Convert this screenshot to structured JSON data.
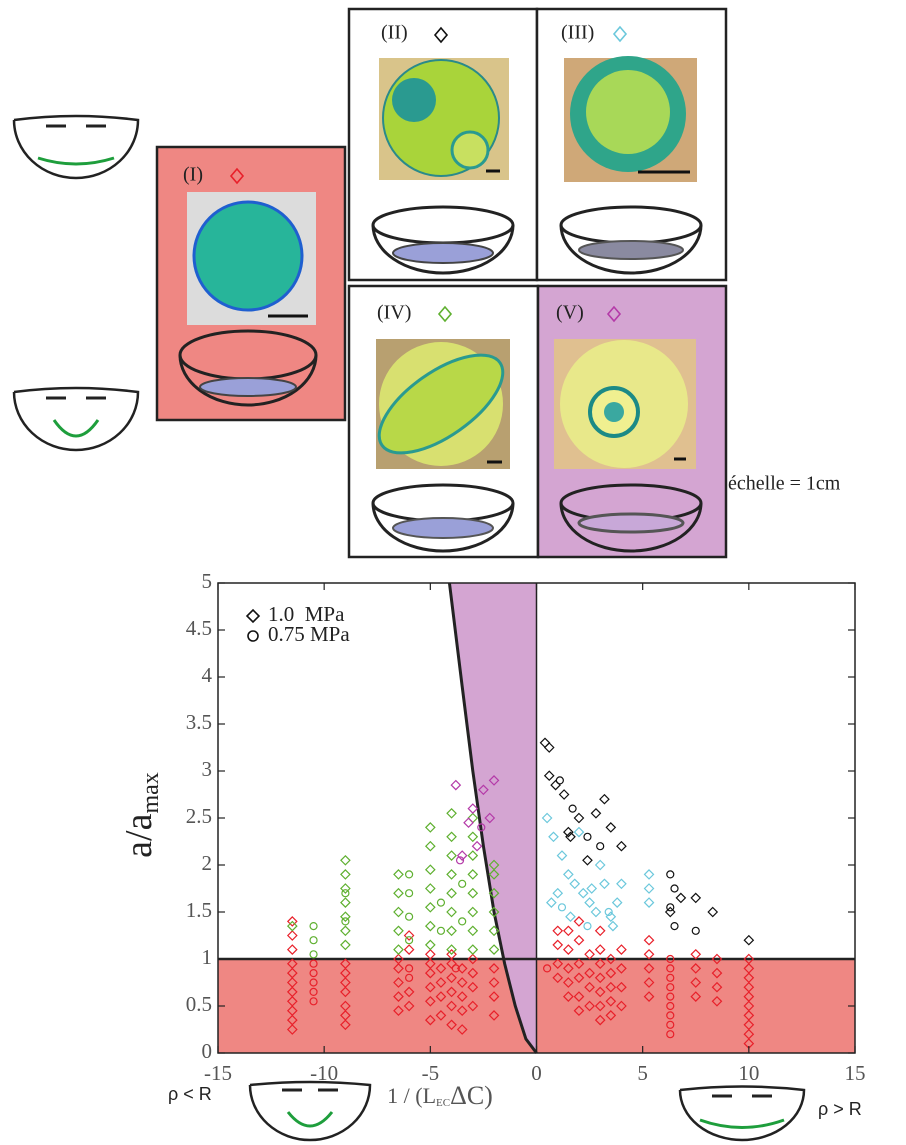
{
  "panels": [
    "(I)",
    "(II)",
    "(III)",
    "(IV)",
    "(V)"
  ],
  "scale_label": "échelle = 1cm",
  "chart_data": {
    "type": "scatter",
    "ylabel": "a/a",
    "ylabel_sub": "max",
    "xlabel": [
      "1 / (L",
      "EC",
      "ΔC)"
    ],
    "left_note": "ρ < R",
    "right_note": "ρ > R",
    "xlim": [
      -15,
      15
    ],
    "ylim": [
      0,
      5
    ],
    "xticks": [
      -15,
      -10,
      -5,
      0,
      5,
      10,
      15
    ],
    "yticks": [
      0,
      0.5,
      1,
      1.5,
      2,
      2.5,
      3,
      3.5,
      4,
      4.5,
      5
    ],
    "band_ylim": [
      0,
      1
    ],
    "band_color": "#ef8783",
    "vline": 0,
    "curve": {
      "color": "#d4a5d2",
      "x": [
        -4.1,
        -3.5,
        -3,
        -2.5,
        -2,
        -1.5,
        -1,
        -0.5,
        0
      ],
      "values": [
        5,
        3.9,
        3.0,
        2.2,
        1.5,
        0.95,
        0.5,
        0.15,
        0
      ]
    },
    "legend": [
      {
        "marker": "diamond",
        "label": "1.0  MPa"
      },
      {
        "marker": "circle",
        "label": "0.75 MPa"
      }
    ],
    "series": [
      {
        "marker": "diamond",
        "color": "#e8202a",
        "x": [
          -11.5,
          -11.5,
          -11.5,
          -11.5,
          -11.5,
          -11.5,
          -11.5,
          -11.5,
          -11.5,
          -11.5,
          -11.5,
          -9,
          -9,
          -9,
          -9,
          -9,
          -9,
          -9,
          -6.5,
          -6.5,
          -6.5,
          -6.5,
          -6.5,
          -6,
          -6,
          -6,
          -6,
          -5,
          -5,
          -5,
          -5,
          -5,
          -5,
          -4.5,
          -4.5,
          -4.5,
          -4.5,
          -4,
          -4,
          -4,
          -4,
          -4,
          -4,
          -3.5,
          -3.5,
          -3.5,
          -3.5,
          -3.5,
          -3,
          -3,
          -3,
          -3,
          -2,
          -2,
          -2,
          -2,
          1,
          1,
          1,
          1,
          1.5,
          1.5,
          1.5,
          1.5,
          1.5,
          2,
          2,
          2,
          2,
          2,
          2,
          2.5,
          2.5,
          2.5,
          2.5,
          3,
          3,
          3,
          3,
          3,
          3,
          3,
          3.5,
          3.5,
          3.5,
          3.5,
          3.5,
          4,
          4,
          4,
          4,
          5.3,
          5.3,
          5.3,
          5.3,
          5.3,
          7.5,
          7.5,
          7.5,
          7.5,
          8.5,
          8.5,
          8.5,
          8.5,
          10,
          10,
          10,
          10,
          10,
          10,
          10,
          10,
          10,
          10
        ],
        "values": [
          0.25,
          0.35,
          0.45,
          0.55,
          0.65,
          0.75,
          0.85,
          0.95,
          1.1,
          1.25,
          1.4,
          0.3,
          0.4,
          0.5,
          0.65,
          0.75,
          0.85,
          0.95,
          0.45,
          0.6,
          0.75,
          0.9,
          1.0,
          0.5,
          0.65,
          1.1,
          1.25,
          0.35,
          0.55,
          0.7,
          0.85,
          0.95,
          1.05,
          0.4,
          0.6,
          0.75,
          0.9,
          0.3,
          0.5,
          0.65,
          0.8,
          0.95,
          1.05,
          0.25,
          0.45,
          0.6,
          0.75,
          0.9,
          0.5,
          0.7,
          0.85,
          1.0,
          0.4,
          0.6,
          0.75,
          0.9,
          0.8,
          0.95,
          1.15,
          1.3,
          0.6,
          0.75,
          0.9,
          1.1,
          1.3,
          0.45,
          0.6,
          0.8,
          0.95,
          1.2,
          1.4,
          0.5,
          0.7,
          0.85,
          1.05,
          0.35,
          0.5,
          0.65,
          0.8,
          0.95,
          1.1,
          1.3,
          0.4,
          0.55,
          0.7,
          0.85,
          1.0,
          0.5,
          0.7,
          0.9,
          1.1,
          0.6,
          0.75,
          0.9,
          1.05,
          1.2,
          0.6,
          0.75,
          0.9,
          1.05,
          0.55,
          0.7,
          0.85,
          1.0,
          0.1,
          0.2,
          0.3,
          0.4,
          0.5,
          0.6,
          0.7,
          0.8,
          0.9,
          1.0
        ]
      },
      {
        "marker": "circle",
        "color": "#e8202a",
        "x": [
          -10.5,
          -10.5,
          -10.5,
          -10.5,
          -10.5,
          -6,
          -6,
          -3.8,
          0.5,
          6.3,
          6.3,
          6.3,
          6.3,
          6.3,
          6.3,
          6.3,
          6.3,
          6.3
        ],
        "values": [
          0.55,
          0.65,
          0.75,
          0.85,
          0.95,
          0.8,
          0.9,
          0.9,
          0.9,
          0.2,
          0.3,
          0.4,
          0.5,
          0.6,
          0.7,
          0.8,
          0.9,
          1.0
        ]
      },
      {
        "marker": "diamond",
        "color": "#5fb030",
        "x": [
          -11.5,
          -9,
          -9,
          -9,
          -9,
          -9,
          -9,
          -9,
          -6.5,
          -6.5,
          -6.5,
          -6.5,
          -6.5,
          -5,
          -5,
          -5,
          -5,
          -5,
          -5,
          -5,
          -4,
          -4,
          -4,
          -4,
          -4,
          -4,
          -4,
          -4,
          -3,
          -3,
          -3,
          -3,
          -3,
          -3,
          -3,
          -3,
          -2,
          -2,
          -2,
          -2,
          -2,
          -2
        ],
        "values": [
          1.35,
          1.15,
          1.3,
          1.45,
          1.6,
          1.75,
          1.9,
          2.05,
          1.1,
          1.3,
          1.5,
          1.7,
          1.9,
          1.15,
          1.35,
          1.55,
          1.75,
          1.95,
          2.2,
          2.4,
          1.1,
          1.3,
          1.5,
          1.7,
          1.9,
          2.1,
          2.3,
          2.55,
          1.1,
          1.3,
          1.5,
          1.7,
          1.9,
          2.1,
          2.3,
          2.5,
          1.1,
          1.3,
          1.5,
          1.7,
          1.9,
          2.0
        ]
      },
      {
        "marker": "circle",
        "color": "#5fb030",
        "x": [
          -10.5,
          -10.5,
          -10.5,
          -9,
          -9,
          -6,
          -6,
          -6,
          -6,
          -4.5,
          -4.5,
          -3.5,
          -3.5
        ],
        "values": [
          1.05,
          1.2,
          1.35,
          1.4,
          1.7,
          1.2,
          1.45,
          1.7,
          1.9,
          1.3,
          1.6,
          1.4,
          1.8
        ]
      },
      {
        "marker": "diamond",
        "color": "#b43aa8",
        "x": [
          -3.8,
          -3.2,
          -3,
          -2.5,
          -2.2,
          -2,
          -2.8,
          -3.5
        ],
        "values": [
          2.85,
          2.45,
          2.6,
          2.8,
          2.5,
          2.9,
          2.2,
          2.1
        ]
      },
      {
        "marker": "circle",
        "color": "#b43aa8",
        "x": [
          -3.6,
          -2.6
        ],
        "values": [
          2.05,
          2.4
        ]
      },
      {
        "marker": "diamond",
        "color": "#6cc8dc",
        "x": [
          0.5,
          0.8,
          1.2,
          1.5,
          1.8,
          2.2,
          2.5,
          2.8,
          3.2,
          3.5,
          3.8,
          4,
          1,
          2,
          3,
          5.3,
          5.3,
          5.3,
          0.7,
          1.6,
          2.6,
          3.6
        ],
        "values": [
          2.5,
          2.3,
          2.1,
          1.9,
          1.8,
          1.7,
          1.6,
          1.5,
          1.8,
          1.45,
          1.6,
          1.8,
          1.7,
          2.35,
          2.0,
          1.9,
          1.75,
          1.6,
          1.6,
          1.45,
          1.75,
          1.35
        ]
      },
      {
        "marker": "circle",
        "color": "#6cc8dc",
        "x": [
          1.2,
          2.4,
          3.4
        ],
        "values": [
          1.55,
          1.35,
          1.5
        ]
      },
      {
        "marker": "diamond",
        "color": "#111111",
        "x": [
          0.4,
          0.6,
          0.6,
          0.9,
          1.3,
          1.6,
          2,
          2.4,
          3.2,
          3.5,
          4,
          6.3,
          6.8,
          7.5,
          8.3,
          10,
          1.5,
          2.8
        ],
        "values": [
          3.3,
          3.25,
          2.95,
          2.85,
          2.75,
          2.3,
          2.5,
          2.05,
          2.7,
          2.4,
          2.2,
          1.5,
          1.65,
          1.65,
          1.5,
          1.2,
          2.35,
          2.55
        ]
      },
      {
        "marker": "circle",
        "color": "#111111",
        "x": [
          1.1,
          1.7,
          2.4,
          6.3,
          6.5,
          6.3,
          6.5,
          7.5,
          3
        ],
        "values": [
          2.9,
          2.6,
          2.3,
          1.9,
          1.75,
          1.55,
          1.35,
          1.3,
          2.2
        ]
      }
    ]
  }
}
